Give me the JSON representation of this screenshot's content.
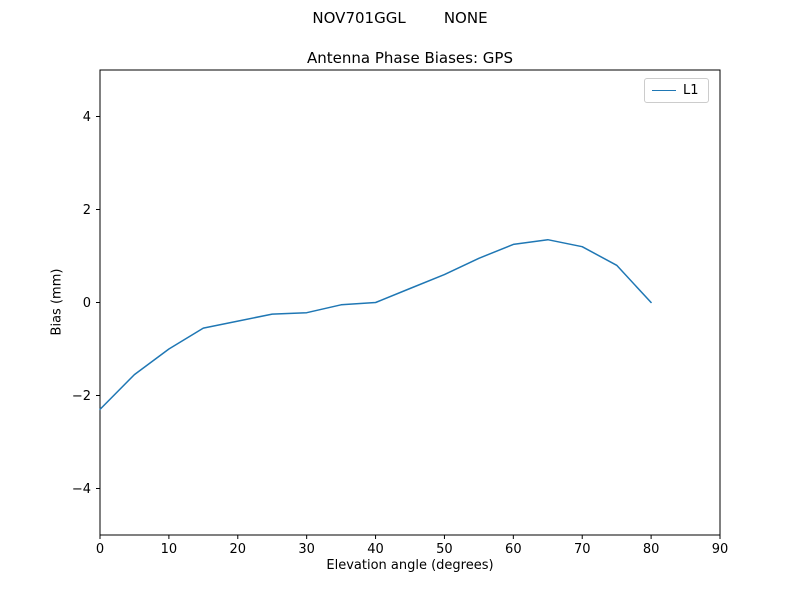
{
  "chart_data": {
    "type": "line",
    "suptitle": "NOV701GGL        NONE",
    "title": "Antenna Phase Biases: GPS",
    "xlabel": "Elevation angle (degrees)",
    "ylabel": "Bias (mm)",
    "xlim": [
      0,
      90
    ],
    "ylim": [
      -5,
      5
    ],
    "xticks": [
      0,
      10,
      20,
      30,
      40,
      50,
      60,
      70,
      80,
      90
    ],
    "yticks": [
      -4,
      -2,
      0,
      2,
      4
    ],
    "grid": false,
    "legend_position": "upper right",
    "line_color": "#1f77b4",
    "spine_color": "#000000",
    "series": [
      {
        "name": "L1",
        "x": [
          0,
          5,
          10,
          15,
          20,
          25,
          30,
          35,
          40,
          45,
          50,
          55,
          60,
          65,
          70,
          75,
          80
        ],
        "y": [
          -2.3,
          -1.55,
          -1.0,
          -0.55,
          -0.4,
          -0.25,
          -0.22,
          -0.05,
          0.0,
          0.3,
          0.6,
          0.95,
          1.25,
          1.35,
          1.2,
          0.8,
          0.0
        ]
      }
    ]
  }
}
